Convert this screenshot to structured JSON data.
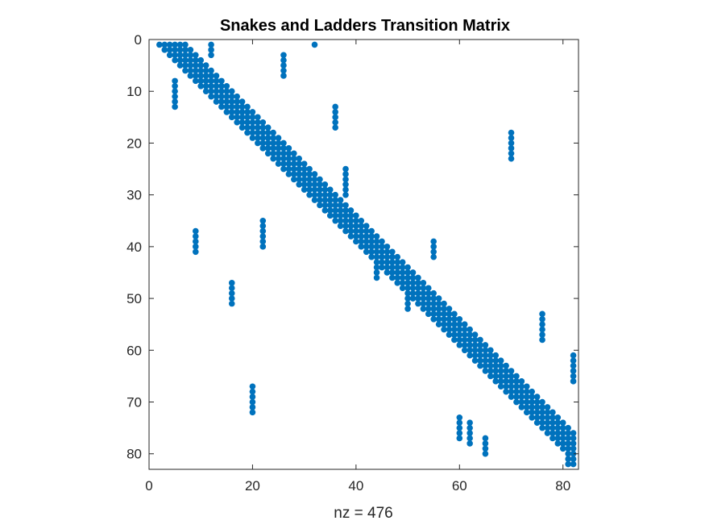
{
  "chart_data": {
    "type": "scatter",
    "title": "Snakes and Ladders Transition Matrix",
    "xlabel": "nz = 476",
    "ylabel": "",
    "xlim": [
      0,
      83
    ],
    "ylim": [
      0,
      83
    ],
    "y_reversed": true,
    "x_ticks": [
      0,
      20,
      40,
      60,
      80
    ],
    "y_ticks": [
      0,
      10,
      20,
      30,
      40,
      50,
      60,
      70,
      80
    ],
    "grid": false,
    "marker_color": "#0072BD",
    "nnz": 476,
    "diagonal_band": {
      "n": 82,
      "offsets": [
        1,
        2,
        3,
        4,
        5,
        6
      ]
    },
    "extra_points": [
      {
        "col": 2,
        "row_start": 1,
        "row_end": 1
      },
      {
        "col": 12,
        "row_start": 1,
        "row_end": 3
      },
      {
        "col": 26,
        "row_start": 3,
        "row_end": 7
      },
      {
        "col": 32,
        "row_start": 1,
        "row_end": 1
      },
      {
        "col": 5,
        "row_start": 8,
        "row_end": 13
      },
      {
        "col": 36,
        "row_start": 13,
        "row_end": 17
      },
      {
        "col": 70,
        "row_start": 18,
        "row_end": 23
      },
      {
        "col": 38,
        "row_start": 25,
        "row_end": 30
      },
      {
        "col": 22,
        "row_start": 35,
        "row_end": 40
      },
      {
        "col": 9,
        "row_start": 37,
        "row_end": 41
      },
      {
        "col": 55,
        "row_start": 39,
        "row_end": 42
      },
      {
        "col": 44,
        "row_start": 41,
        "row_end": 46
      },
      {
        "col": 16,
        "row_start": 47,
        "row_end": 51
      },
      {
        "col": 50,
        "row_start": 48,
        "row_end": 52
      },
      {
        "col": 76,
        "row_start": 53,
        "row_end": 58
      },
      {
        "col": 82,
        "row_start": 61,
        "row_end": 66
      },
      {
        "col": 20,
        "row_start": 67,
        "row_end": 72
      },
      {
        "col": 60,
        "row_start": 73,
        "row_end": 77
      },
      {
        "col": 62,
        "row_start": 74,
        "row_end": 78
      },
      {
        "col": 65,
        "row_start": 77,
        "row_end": 80
      },
      {
        "col": 82,
        "row_start": 77,
        "row_end": 82
      },
      {
        "col": 81,
        "row_start": 77,
        "row_end": 82
      }
    ]
  }
}
